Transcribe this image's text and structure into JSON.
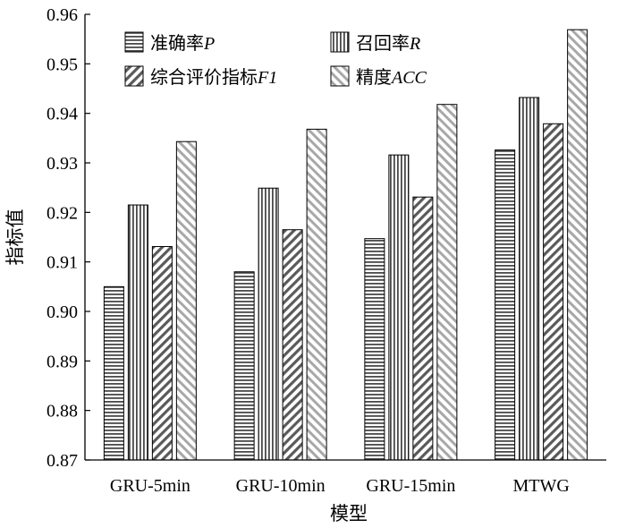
{
  "chart_data": {
    "type": "bar",
    "xlabel": "模型",
    "ylabel": "指标值",
    "ylim": [
      0.87,
      0.96
    ],
    "yticks": [
      "0.87",
      "0.88",
      "0.89",
      "0.90",
      "0.91",
      "0.92",
      "0.93",
      "0.94",
      "0.95",
      "0.96"
    ],
    "categories": [
      "GRU-5min",
      "GRU-10min",
      "GRU-15min",
      "MTWG"
    ],
    "series": [
      {
        "name": "准确率P",
        "label_text": "准确率",
        "label_var": "P",
        "pattern": "horizontal",
        "values": [
          0.905,
          0.908,
          0.9147,
          0.9326
        ]
      },
      {
        "name": "召回率R",
        "label_text": "召回率",
        "label_var": "R",
        "pattern": "vertical",
        "values": [
          0.9215,
          0.9249,
          0.9316,
          0.9432
        ]
      },
      {
        "name": "综合评价指标F1",
        "label_text": "综合评价指标",
        "label_var": "F1",
        "pattern": "diag-down",
        "values": [
          0.9131,
          0.9165,
          0.9231,
          0.9379
        ]
      },
      {
        "name": "精度ACC",
        "label_text": "精度",
        "label_var": "ACC",
        "pattern": "diag-up",
        "values": [
          0.9343,
          0.9368,
          0.9418,
          0.9569
        ]
      }
    ],
    "grid": false,
    "legend_position": "top-left"
  }
}
